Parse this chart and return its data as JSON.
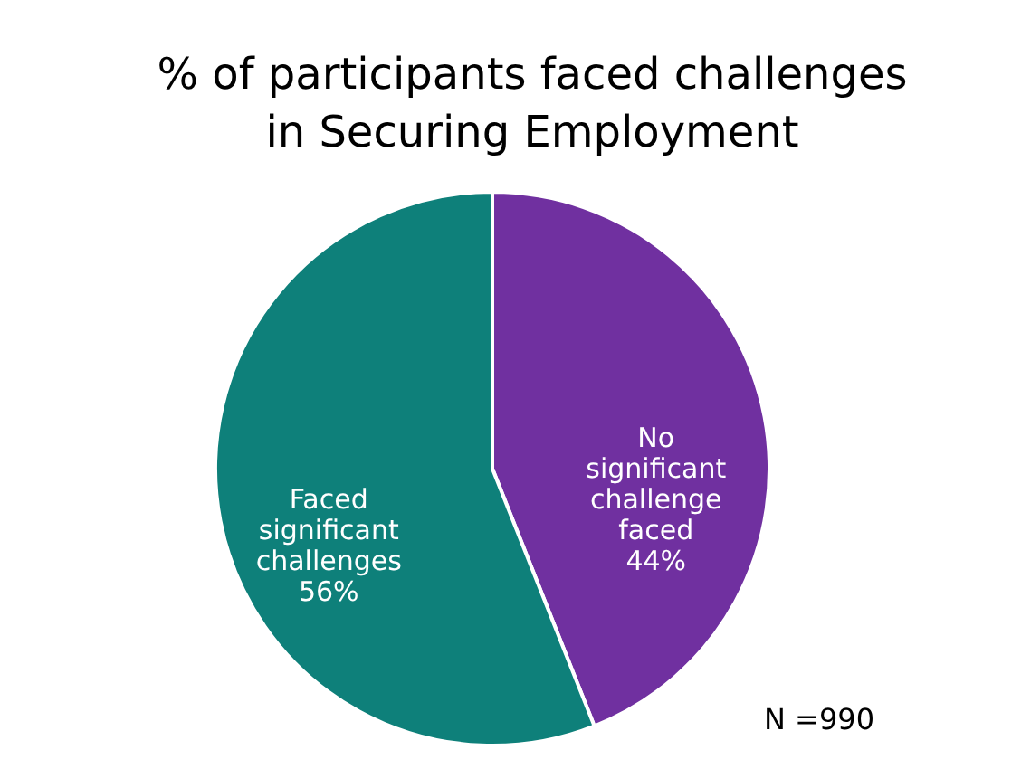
{
  "chart_data": {
    "type": "pie",
    "title": "% of participants  faced challenges\nin Securing Employment",
    "categories": [
      "No significant challenge faced",
      "Faced significant challenges"
    ],
    "values": [
      44,
      56
    ],
    "colors": [
      "#7030a0",
      "#0e807a"
    ],
    "value_labels": [
      "44%",
      "56%"
    ],
    "annotations": [
      "N =990"
    ]
  }
}
